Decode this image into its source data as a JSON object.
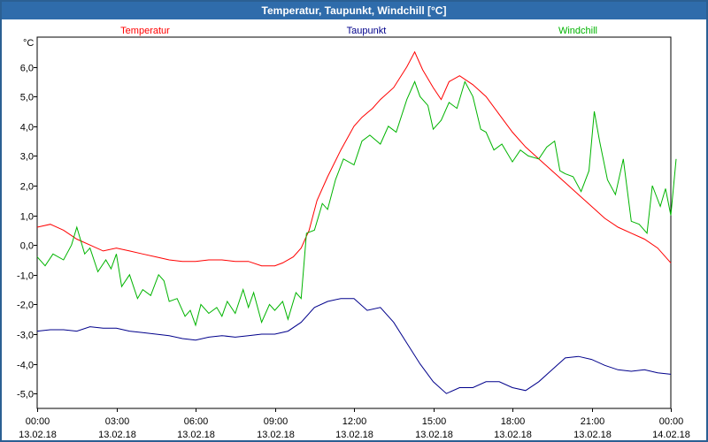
{
  "title": "Temperatur, Taupunkt, Windchill [°C]",
  "chart_data": {
    "type": "line",
    "title": "Temperatur, Taupunkt, Windchill [°C]",
    "ylabel": "°C",
    "ylim": [
      -5.5,
      7.0
    ],
    "xlim": [
      0,
      24
    ],
    "y_ticks": [
      6,
      5,
      4,
      3,
      2,
      1,
      0,
      -1,
      -2,
      -3,
      -4,
      -5
    ],
    "y_tick_labels": [
      "6,0",
      "5,0",
      "4,0",
      "3,0",
      "2,0",
      "1,0",
      "0,0",
      "-1,0",
      "-2,0",
      "-3,0",
      "-4,0",
      "-5,0"
    ],
    "x_ticks": [
      0,
      3,
      6,
      9,
      12,
      15,
      18,
      21,
      24
    ],
    "x_tick_labels": [
      [
        "00:00",
        "13.02.18"
      ],
      [
        "03:00",
        "13.02.18"
      ],
      [
        "06:00",
        "13.02.18"
      ],
      [
        "09:00",
        "13.02.18"
      ],
      [
        "12:00",
        "13.02.18"
      ],
      [
        "15:00",
        "13.02.18"
      ],
      [
        "18:00",
        "13.02.18"
      ],
      [
        "21:00",
        "13.02.18"
      ],
      [
        "00:00",
        "14.02.18"
      ]
    ],
    "grid": true,
    "legend_position": "top",
    "series": [
      {
        "name": "Temperatur",
        "color": "#ff0000",
        "points": [
          [
            0,
            0.6
          ],
          [
            0.5,
            0.7
          ],
          [
            1,
            0.5
          ],
          [
            1.5,
            0.2
          ],
          [
            2,
            0.0
          ],
          [
            2.5,
            -0.2
          ],
          [
            3,
            -0.1
          ],
          [
            3.5,
            -0.2
          ],
          [
            4,
            -0.3
          ],
          [
            4.5,
            -0.4
          ],
          [
            5,
            -0.5
          ],
          [
            5.5,
            -0.55
          ],
          [
            6,
            -0.55
          ],
          [
            6.5,
            -0.5
          ],
          [
            7,
            -0.5
          ],
          [
            7.5,
            -0.55
          ],
          [
            8,
            -0.55
          ],
          [
            8.5,
            -0.7
          ],
          [
            9,
            -0.7
          ],
          [
            9.3,
            -0.6
          ],
          [
            9.7,
            -0.4
          ],
          [
            10,
            -0.1
          ],
          [
            10.3,
            0.5
          ],
          [
            10.6,
            1.5
          ],
          [
            11,
            2.3
          ],
          [
            11.5,
            3.2
          ],
          [
            12,
            4.0
          ],
          [
            12.3,
            4.3
          ],
          [
            12.7,
            4.6
          ],
          [
            13,
            4.9
          ],
          [
            13.5,
            5.3
          ],
          [
            14,
            6.0
          ],
          [
            14.3,
            6.5
          ],
          [
            14.6,
            5.9
          ],
          [
            15,
            5.3
          ],
          [
            15.3,
            4.9
          ],
          [
            15.6,
            5.5
          ],
          [
            16,
            5.7
          ],
          [
            16.5,
            5.4
          ],
          [
            17,
            5.0
          ],
          [
            17.5,
            4.4
          ],
          [
            18,
            3.8
          ],
          [
            18.5,
            3.3
          ],
          [
            19,
            2.9
          ],
          [
            19.5,
            2.5
          ],
          [
            20,
            2.1
          ],
          [
            20.5,
            1.7
          ],
          [
            21,
            1.3
          ],
          [
            21.5,
            0.9
          ],
          [
            22,
            0.6
          ],
          [
            22.5,
            0.4
          ],
          [
            23,
            0.2
          ],
          [
            23.5,
            -0.1
          ],
          [
            24,
            -0.6
          ]
        ]
      },
      {
        "name": "Taupunkt",
        "color": "#00008b",
        "points": [
          [
            0,
            -2.9
          ],
          [
            0.5,
            -2.85
          ],
          [
            1,
            -2.85
          ],
          [
            1.5,
            -2.9
          ],
          [
            2,
            -2.75
          ],
          [
            2.5,
            -2.8
          ],
          [
            3,
            -2.8
          ],
          [
            3.5,
            -2.9
          ],
          [
            4,
            -2.95
          ],
          [
            4.5,
            -3.0
          ],
          [
            5,
            -3.05
          ],
          [
            5.5,
            -3.15
          ],
          [
            6,
            -3.2
          ],
          [
            6.5,
            -3.1
          ],
          [
            7,
            -3.05
          ],
          [
            7.5,
            -3.1
          ],
          [
            8,
            -3.05
          ],
          [
            8.5,
            -3.0
          ],
          [
            9,
            -3.0
          ],
          [
            9.5,
            -2.9
          ],
          [
            10,
            -2.6
          ],
          [
            10.5,
            -2.1
          ],
          [
            11,
            -1.9
          ],
          [
            11.5,
            -1.8
          ],
          [
            12,
            -1.8
          ],
          [
            12.5,
            -2.2
          ],
          [
            13,
            -2.1
          ],
          [
            13.5,
            -2.6
          ],
          [
            14,
            -3.3
          ],
          [
            14.5,
            -4.0
          ],
          [
            15,
            -4.6
          ],
          [
            15.5,
            -5.0
          ],
          [
            16,
            -4.8
          ],
          [
            16.5,
            -4.8
          ],
          [
            17,
            -4.6
          ],
          [
            17.5,
            -4.6
          ],
          [
            18,
            -4.8
          ],
          [
            18.5,
            -4.9
          ],
          [
            19,
            -4.6
          ],
          [
            19.5,
            -4.2
          ],
          [
            20,
            -3.8
          ],
          [
            20.5,
            -3.75
          ],
          [
            21,
            -3.85
          ],
          [
            21.5,
            -4.05
          ],
          [
            22,
            -4.2
          ],
          [
            22.5,
            -4.25
          ],
          [
            23,
            -4.2
          ],
          [
            23.5,
            -4.3
          ],
          [
            24,
            -4.35
          ]
        ]
      },
      {
        "name": "Windchill",
        "color": "#00b400",
        "points": [
          [
            0,
            -0.4
          ],
          [
            0.3,
            -0.7
          ],
          [
            0.6,
            -0.3
          ],
          [
            1,
            -0.5
          ],
          [
            1.3,
            0.0
          ],
          [
            1.5,
            0.6
          ],
          [
            1.8,
            -0.3
          ],
          [
            2,
            -0.1
          ],
          [
            2.3,
            -0.9
          ],
          [
            2.6,
            -0.5
          ],
          [
            2.8,
            -0.8
          ],
          [
            3,
            -0.3
          ],
          [
            3.2,
            -1.4
          ],
          [
            3.5,
            -1.0
          ],
          [
            3.8,
            -1.8
          ],
          [
            4,
            -1.5
          ],
          [
            4.3,
            -1.7
          ],
          [
            4.6,
            -1.0
          ],
          [
            4.8,
            -1.2
          ],
          [
            5,
            -1.9
          ],
          [
            5.3,
            -1.8
          ],
          [
            5.6,
            -2.4
          ],
          [
            5.8,
            -2.2
          ],
          [
            6,
            -2.7
          ],
          [
            6.2,
            -2.0
          ],
          [
            6.5,
            -2.3
          ],
          [
            6.8,
            -2.1
          ],
          [
            7,
            -2.4
          ],
          [
            7.2,
            -1.9
          ],
          [
            7.5,
            -2.3
          ],
          [
            7.8,
            -1.5
          ],
          [
            8,
            -2.1
          ],
          [
            8.2,
            -1.6
          ],
          [
            8.5,
            -2.6
          ],
          [
            8.8,
            -2.0
          ],
          [
            9,
            -2.2
          ],
          [
            9.3,
            -1.9
          ],
          [
            9.5,
            -2.5
          ],
          [
            9.8,
            -1.6
          ],
          [
            10,
            -1.8
          ],
          [
            10.2,
            0.4
          ],
          [
            10.5,
            0.5
          ],
          [
            10.8,
            1.4
          ],
          [
            11,
            1.2
          ],
          [
            11.3,
            2.2
          ],
          [
            11.6,
            2.9
          ],
          [
            12,
            2.7
          ],
          [
            12.3,
            3.5
          ],
          [
            12.6,
            3.7
          ],
          [
            13,
            3.4
          ],
          [
            13.3,
            4.0
          ],
          [
            13.6,
            3.8
          ],
          [
            14,
            4.9
          ],
          [
            14.3,
            5.5
          ],
          [
            14.5,
            5.0
          ],
          [
            14.8,
            4.7
          ],
          [
            15,
            3.9
          ],
          [
            15.3,
            4.2
          ],
          [
            15.6,
            4.8
          ],
          [
            15.9,
            4.6
          ],
          [
            16.2,
            5.5
          ],
          [
            16.5,
            5.0
          ],
          [
            16.8,
            3.9
          ],
          [
            17,
            3.8
          ],
          [
            17.3,
            3.2
          ],
          [
            17.6,
            3.4
          ],
          [
            18,
            2.8
          ],
          [
            18.3,
            3.2
          ],
          [
            18.6,
            3.0
          ],
          [
            19,
            2.9
          ],
          [
            19.3,
            3.3
          ],
          [
            19.6,
            3.5
          ],
          [
            19.8,
            2.5
          ],
          [
            20,
            2.4
          ],
          [
            20.3,
            2.3
          ],
          [
            20.6,
            1.8
          ],
          [
            20.9,
            2.5
          ],
          [
            21.1,
            4.5
          ],
          [
            21.3,
            3.5
          ],
          [
            21.6,
            2.2
          ],
          [
            21.9,
            1.7
          ],
          [
            22.2,
            2.9
          ],
          [
            22.5,
            0.8
          ],
          [
            22.8,
            0.7
          ],
          [
            23.1,
            0.4
          ],
          [
            23.3,
            2.0
          ],
          [
            23.6,
            1.3
          ],
          [
            23.8,
            1.9
          ],
          [
            24,
            1.0
          ],
          [
            24.2,
            2.9
          ]
        ]
      }
    ]
  }
}
